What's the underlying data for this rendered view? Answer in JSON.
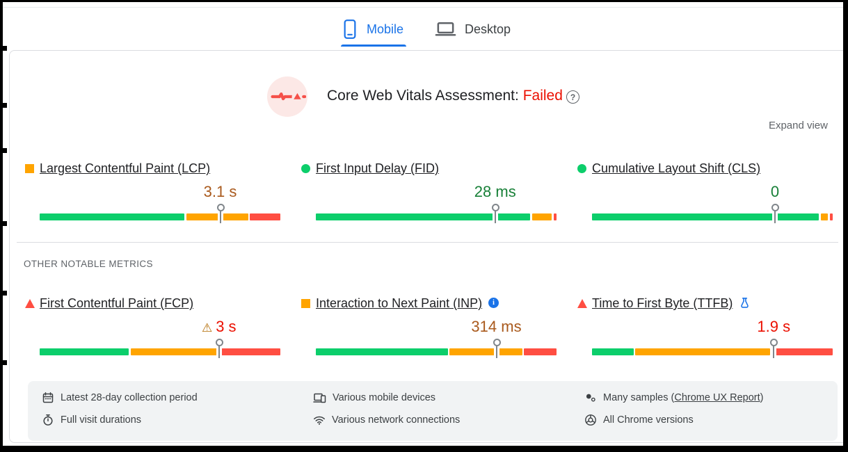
{
  "tabs": {
    "mobile": {
      "label": "Mobile",
      "icon": "phone-icon",
      "active": true
    },
    "desktop": {
      "label": "Desktop",
      "icon": "laptop-icon",
      "active": false
    }
  },
  "assessment": {
    "label": "Core Web Vitals Assessment:",
    "status": "Failed",
    "status_color": "#eb0f00",
    "icon": "vitals-pulse-icon",
    "help_glyph": "?"
  },
  "expand_view_label": "Expand view",
  "other_metrics_heading": "OTHER NOTABLE METRICS",
  "colors": {
    "good": "#0cce6b",
    "needs_improvement": "#ffa400",
    "poor": "#ff4e42",
    "good_text": "#188038",
    "ni_text": "#a9591c",
    "poor_text": "#eb0f00",
    "accent_blue": "#1a73e8"
  },
  "metrics_row1": [
    {
      "id": "lcp",
      "bullet": "square",
      "bullet_color": "#ffa400",
      "title": "Largest Contentful Paint (LCP)",
      "value": "3.1 s",
      "value_color": "#a9591c",
      "marker_pct": 75,
      "segments": [
        {
          "color": "#0cce6b",
          "from": 0,
          "to": 60.1
        },
        {
          "color": "#ffa400",
          "from": 60.9,
          "to": 86.6
        },
        {
          "color": "#ff4e42",
          "from": 87.4,
          "to": 100
        }
      ]
    },
    {
      "id": "fid",
      "bullet": "circle",
      "bullet_color": "#0cce6b",
      "title": "First Input Delay (FID)",
      "value": "28 ms",
      "value_color": "#188038",
      "marker_pct": 74.5,
      "segments": [
        {
          "color": "#0cce6b",
          "from": 0,
          "to": 89
        },
        {
          "color": "#ffa400",
          "from": 89.8,
          "to": 97.9
        },
        {
          "color": "#ff4e42",
          "from": 98.7,
          "to": 100
        }
      ]
    },
    {
      "id": "cls",
      "bullet": "circle",
      "bullet_color": "#0cce6b",
      "title": "Cumulative Layout Shift (CLS)",
      "value": "0",
      "value_color": "#188038",
      "marker_pct": 76,
      "segments": [
        {
          "color": "#0cce6b",
          "from": 0,
          "to": 94.3
        },
        {
          "color": "#ffa400",
          "from": 95,
          "to": 97.9
        },
        {
          "color": "#ff4e42",
          "from": 98.7,
          "to": 100
        }
      ]
    }
  ],
  "metrics_row2": [
    {
      "id": "fcp",
      "bullet": "triangle",
      "bullet_color": "#ff4e42",
      "title": "First Contentful Paint (FCP)",
      "value": "3 s",
      "value_color": "#eb0f00",
      "marker_pct": 74.5,
      "warning_icon": "⚠",
      "segments": [
        {
          "color": "#0cce6b",
          "from": 0,
          "to": 37.1
        },
        {
          "color": "#ffa400",
          "from": 37.9,
          "to": 73.7
        },
        {
          "color": "#ff4e42",
          "from": 74.5,
          "to": 100
        }
      ]
    },
    {
      "id": "inp",
      "bullet": "square",
      "bullet_color": "#ffa400",
      "title": "Interaction to Next Paint (INP)",
      "title_icon": "info-icon",
      "value": "314 ms",
      "value_color": "#a9591c",
      "marker_pct": 75,
      "segments": [
        {
          "color": "#0cce6b",
          "from": 0,
          "to": 54.8
        },
        {
          "color": "#ffa400",
          "from": 55.6,
          "to": 85.7
        },
        {
          "color": "#ff4e42",
          "from": 86.5,
          "to": 100
        }
      ]
    },
    {
      "id": "ttfb",
      "bullet": "triangle",
      "bullet_color": "#ff4e42",
      "title": "Time to First Byte (TTFB)",
      "title_icon": "flask-icon",
      "value": "1.9 s",
      "value_color": "#eb0f00",
      "marker_pct": 75.5,
      "segments": [
        {
          "color": "#0cce6b",
          "from": 0,
          "to": 17.2
        },
        {
          "color": "#ffa400",
          "from": 17.9,
          "to": 73.9
        },
        {
          "color": "#ff4e42",
          "from": 74.7,
          "to": 100
        }
      ]
    }
  ],
  "footer": {
    "items": [
      {
        "icon": "calendar-icon",
        "label": "Latest 28-day collection period",
        "col": 0,
        "row": 0
      },
      {
        "icon": "stopwatch-icon",
        "label": "Full visit durations",
        "col": 0,
        "row": 1
      },
      {
        "icon": "devices-icon",
        "label": "Various mobile devices",
        "col": 1,
        "row": 0
      },
      {
        "icon": "network-icon",
        "label": "Various network connections",
        "col": 1,
        "row": 1
      },
      {
        "icon": "samples-icon",
        "label_prefix": "Many samples (",
        "link_label": "Chrome UX Report",
        "label_suffix": ")",
        "col": 2,
        "row": 0
      },
      {
        "icon": "chrome-icon",
        "label": "All Chrome versions",
        "col": 2,
        "row": 1
      }
    ]
  }
}
